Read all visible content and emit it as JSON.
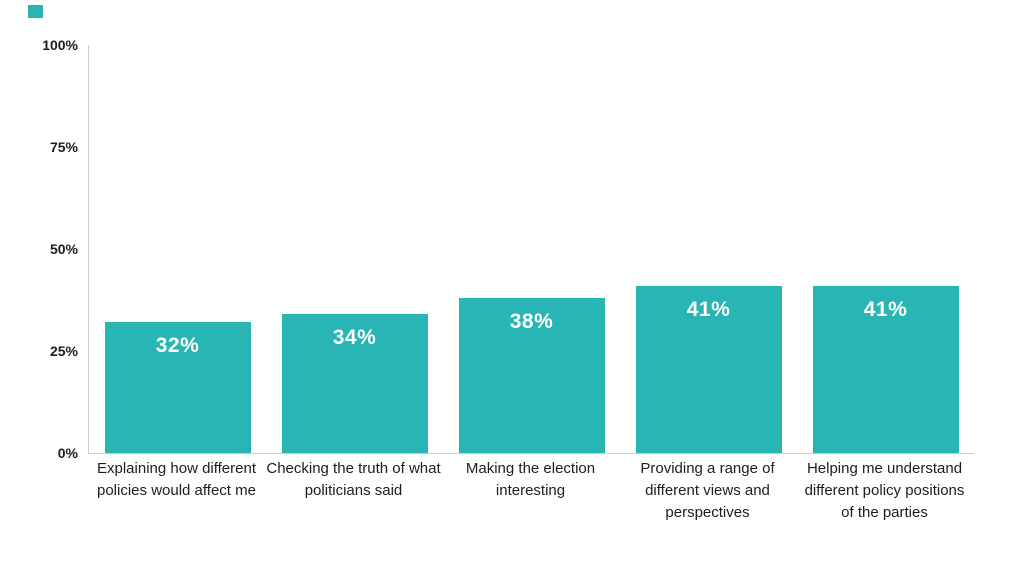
{
  "legend": {
    "swatch_color": "#29b5b4"
  },
  "chart_data": {
    "type": "bar",
    "title": "",
    "xlabel": "",
    "ylabel": "",
    "ylim": [
      0,
      100
    ],
    "grid": false,
    "legend_position": "top-left",
    "categories": [
      "Explaining how different policies would affect me",
      "Checking the truth of what politicians said",
      "Making the election interesting",
      "Providing a range of different views and perspectives",
      "Helping me understand different policy positions of the parties"
    ],
    "category_lines": [
      [
        "Explaining how different",
        "policies would affect me"
      ],
      [
        "Checking the truth of what",
        "politicians said"
      ],
      [
        "Making the election",
        "interesting"
      ],
      [
        "Providing a range of",
        "different views and",
        "perspectives"
      ],
      [
        "Helping me understand",
        "different policy positions",
        "of the parties"
      ]
    ],
    "values": [
      32,
      34,
      38,
      41,
      41
    ],
    "value_labels": [
      "32%",
      "34%",
      "38%",
      "41%",
      "41%"
    ],
    "y_ticks": [
      {
        "value": 0,
        "label": "0%"
      },
      {
        "value": 25,
        "label": "25%"
      },
      {
        "value": 50,
        "label": "50%"
      },
      {
        "value": 75,
        "label": "75%"
      },
      {
        "value": 100,
        "label": "100%"
      }
    ],
    "colors": {
      "bar": "#29b5b4",
      "axis": "#cccccc",
      "label_text": "#1d1d1b",
      "value_text": "#ffffff"
    }
  }
}
